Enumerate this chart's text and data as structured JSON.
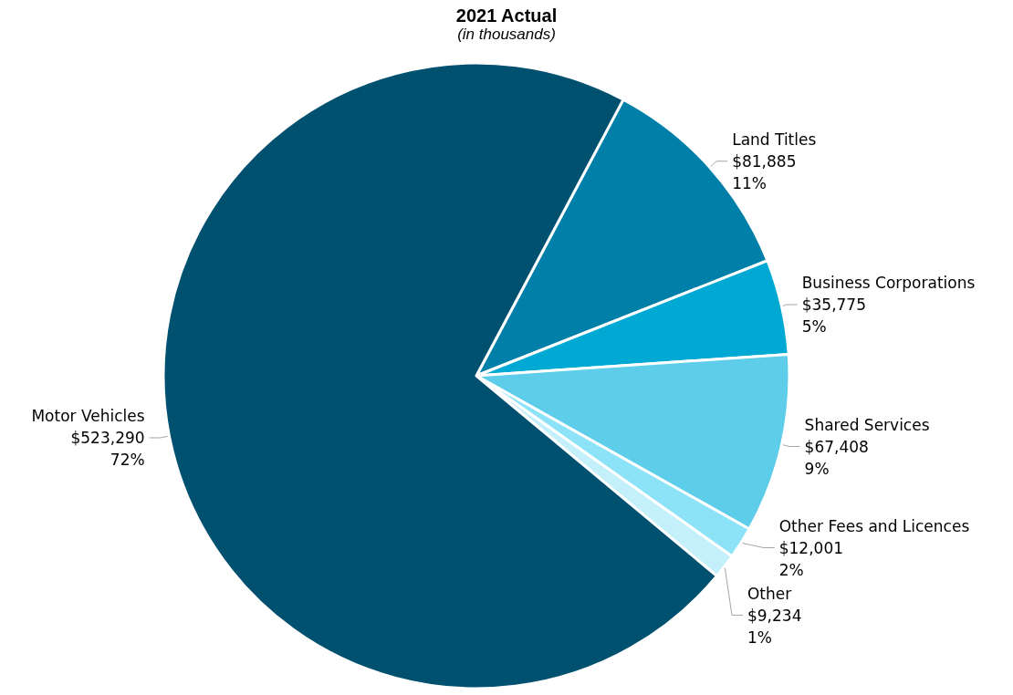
{
  "chart_data": {
    "type": "pie",
    "title": "2021 Actual",
    "subtitle": "(in thousands)",
    "categories": [
      "Land Titles",
      "Business Corporations",
      "Shared Services",
      "Other Fees and Licences",
      "Other",
      "Motor Vehicles"
    ],
    "values": [
      81885,
      35775,
      67408,
      12001,
      9234,
      523290
    ],
    "colors": [
      "#0080a8",
      "#00a9d4",
      "#5dcde9",
      "#8ce3f8",
      "#c4f0fb",
      "#00506f"
    ],
    "value_labels": [
      "$81,885\n11%",
      "$35,775\n5%",
      "$67,408\n9%",
      "$12,001\n2%",
      "$9,234\n1%",
      "$523,290\n72%"
    ],
    "legend": false
  }
}
